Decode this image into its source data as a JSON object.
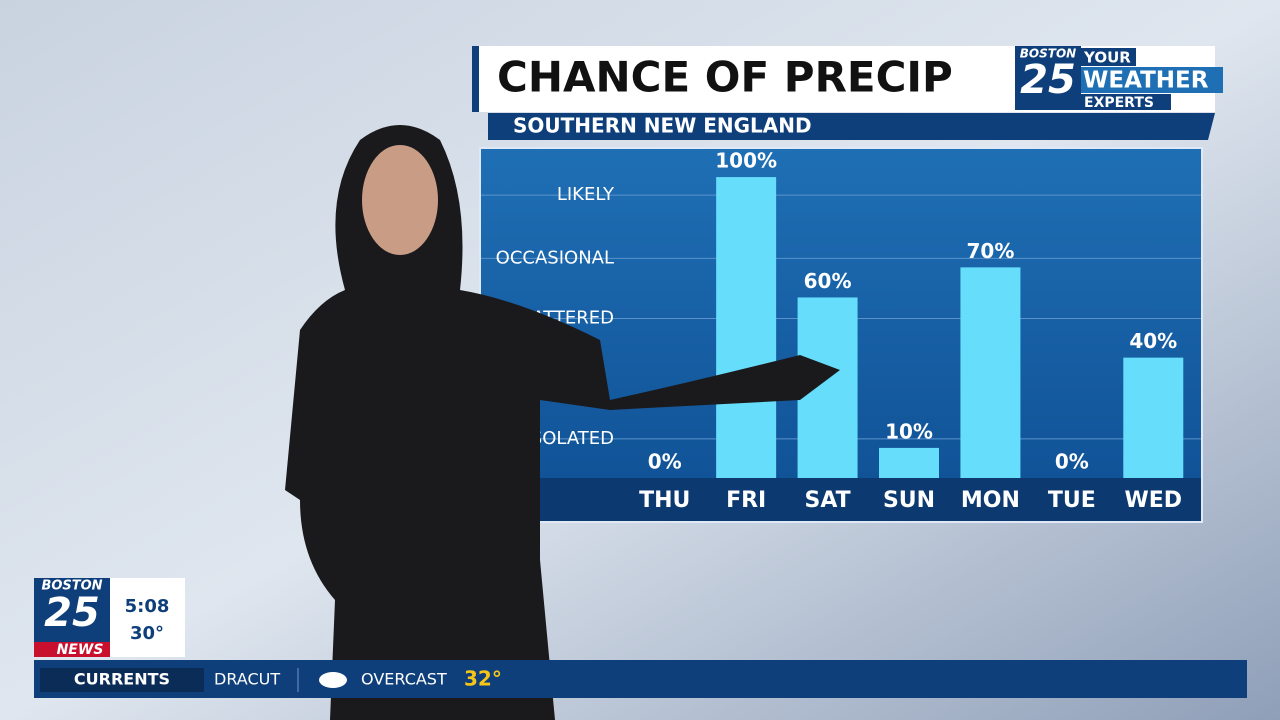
{
  "header": {
    "logo_top": "BOSTON",
    "logo_number": "25",
    "logo_your": "YOUR",
    "logo_weather": "WEATHER",
    "logo_experts": "EXPERTS"
  },
  "chart_data": {
    "type": "bar",
    "title": "CHANCE OF PRECIP",
    "subtitle": "SOUTHERN NEW ENGLAND",
    "categories": [
      "THU",
      "FRI",
      "SAT",
      "SUN",
      "MON",
      "TUE",
      "WED"
    ],
    "values": [
      0,
      100,
      60,
      10,
      70,
      0,
      40
    ],
    "value_labels": [
      "0%",
      "100%",
      "60%",
      "10%",
      "70%",
      "0%",
      "40%"
    ],
    "color": "#66ddfb",
    "ylim": [
      0,
      109
    ],
    "yticks": [
      {
        "value": 13,
        "label": "ISOLATED"
      },
      {
        "value": 53,
        "label": "SCATTERED"
      },
      {
        "value": 73,
        "label": "OCCASIONAL"
      },
      {
        "value": 94,
        "label": "LIKELY"
      }
    ],
    "grid": true
  },
  "corner_logo": {
    "top": "BOSTON",
    "number": "25",
    "bottom": "NEWS",
    "time": "5:08",
    "temperature": "30°"
  },
  "ticker": {
    "label": "CURRENTS",
    "location": "DRACUT",
    "condition": "OVERCAST",
    "temperature": "32°"
  }
}
